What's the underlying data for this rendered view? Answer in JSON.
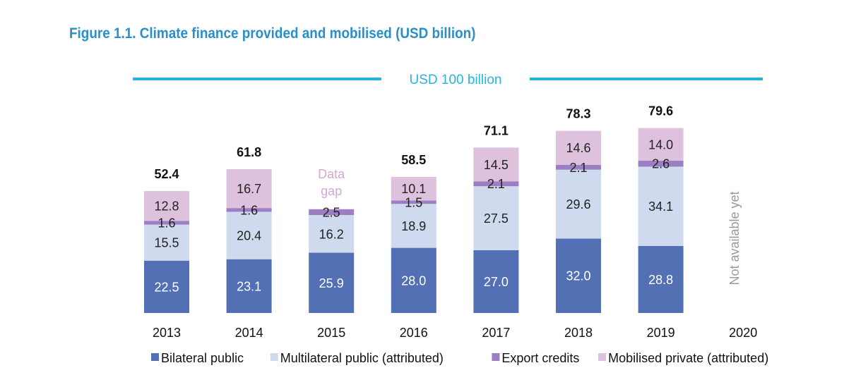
{
  "title": "Figure 1.1. Climate finance provided and mobilised (USD billion)",
  "chart_data": {
    "type": "bar",
    "stacked": true,
    "categories": [
      "2013",
      "2014",
      "2015",
      "2016",
      "2017",
      "2018",
      "2019",
      "2020"
    ],
    "series": [
      {
        "name": "Bilateral public",
        "color": "#5470b5",
        "label_color": "#ffffff",
        "values": [
          22.5,
          23.1,
          25.9,
          28.0,
          27.0,
          32.0,
          28.8,
          null
        ]
      },
      {
        "name": "Multilateral public (attributed)",
        "color": "#cfdaee",
        "label_color": "#222222",
        "values": [
          15.5,
          20.4,
          16.2,
          18.9,
          27.5,
          29.6,
          34.1,
          null
        ]
      },
      {
        "name": "Export credits",
        "color": "#9b7fc2",
        "label_color": "#222222",
        "values": [
          1.6,
          1.6,
          2.5,
          1.5,
          2.1,
          2.1,
          2.6,
          null
        ]
      },
      {
        "name": "Mobilised private (attributed)",
        "color": "#dec2dd",
        "label_color": "#222222",
        "values": [
          12.8,
          16.7,
          null,
          10.1,
          14.5,
          14.6,
          14.0,
          null
        ]
      }
    ],
    "totals": [
      "52.4",
      "61.8",
      "",
      "58.5",
      "71.1",
      "78.3",
      "79.6",
      ""
    ],
    "value_labels": [
      [
        "22.5",
        "23.1",
        "25.9",
        "28.0",
        "27.0",
        "32.0",
        "28.8",
        ""
      ],
      [
        "15.5",
        "20.4",
        "16.2",
        "18.9",
        "27.5",
        "29.6",
        "34.1",
        ""
      ],
      [
        "1.6",
        "1.6",
        "2.5",
        "1.5",
        "2.1",
        "2.1",
        "2.6",
        ""
      ],
      [
        "12.8",
        "16.7",
        "",
        "10.1",
        "14.5",
        "14.6",
        "14.0",
        ""
      ]
    ],
    "target_line": {
      "value": 100,
      "label": "USD 100 billion",
      "color": "#28b4e3"
    },
    "annotations": [
      {
        "category": "2015",
        "text_lines": [
          "Data",
          "gap"
        ],
        "color": "#d2a9d1"
      },
      {
        "category": "2020",
        "text": "Not available yet",
        "color": "#999999"
      }
    ],
    "ylim": [
      0,
      100
    ],
    "grid": false,
    "legend_position": "bottom"
  }
}
